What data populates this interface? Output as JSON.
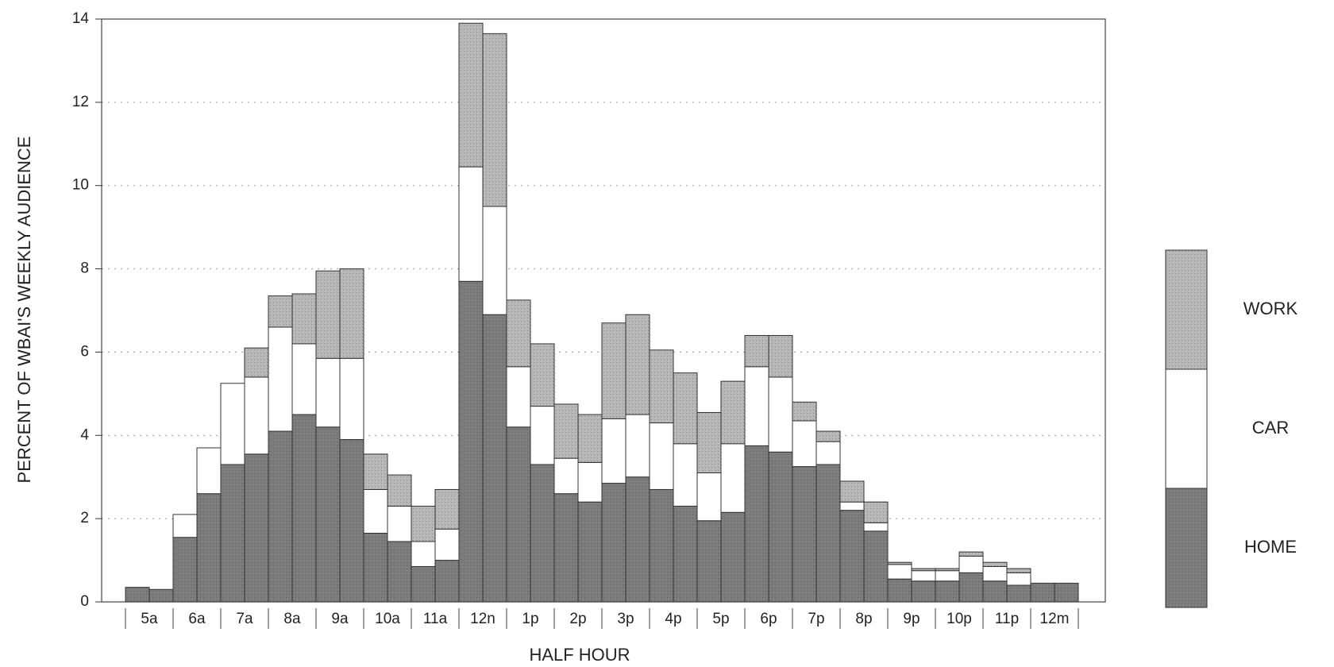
{
  "chart_data": {
    "type": "bar",
    "stacked": true,
    "y_label": "PERCENT OF WBAI'S WEEKLY AUDIENCE",
    "x_label": "HALF HOUR",
    "categories": [
      "5a",
      null,
      "6a",
      null,
      "7a",
      null,
      "8a",
      null,
      "9a",
      null,
      "10a",
      null,
      "11a",
      null,
      "12n",
      null,
      "1p",
      null,
      "2p",
      null,
      "3p",
      null,
      "4p",
      null,
      "5p",
      null,
      "6p",
      null,
      "7p",
      null,
      "8p",
      null,
      "9p",
      null,
      "10p",
      null,
      "11p",
      null,
      "12m",
      null
    ],
    "series": [
      {
        "name": "HOME",
        "color": "#7d7d7d",
        "values": [
          0.35,
          0.3,
          1.55,
          2.6,
          3.3,
          3.55,
          4.1,
          4.5,
          4.2,
          3.9,
          1.65,
          1.45,
          0.85,
          1.0,
          7.7,
          6.9,
          4.2,
          3.3,
          2.6,
          2.4,
          2.85,
          3.0,
          2.7,
          2.3,
          1.95,
          2.15,
          3.75,
          3.6,
          3.25,
          3.3,
          2.2,
          1.7,
          0.55,
          0.5,
          0.5,
          0.7,
          0.5,
          0.4,
          0.45,
          0.45
        ]
      },
      {
        "name": "CAR",
        "color": "#ffffff",
        "values": [
          0,
          0,
          0.55,
          1.1,
          1.95,
          1.85,
          2.5,
          1.7,
          1.65,
          1.95,
          1.05,
          0.85,
          0.6,
          0.75,
          2.75,
          2.6,
          1.45,
          1.4,
          0.85,
          0.95,
          1.55,
          1.5,
          1.6,
          1.5,
          1.15,
          1.65,
          1.9,
          1.8,
          1.1,
          0.55,
          0.2,
          0.2,
          0.35,
          0.25,
          0.25,
          0.4,
          0.35,
          0.3,
          0,
          0
        ]
      },
      {
        "name": "WORK",
        "color": "#b8b8b8",
        "values": [
          0,
          0,
          0,
          0,
          0,
          0.7,
          0.75,
          1.2,
          2.1,
          2.15,
          0.85,
          0.75,
          0.85,
          0.95,
          3.45,
          4.15,
          1.6,
          1.5,
          1.3,
          1.15,
          2.3,
          2.4,
          1.75,
          1.7,
          1.45,
          1.5,
          0.75,
          1.0,
          0.45,
          0.25,
          0.5,
          0.5,
          0.05,
          0.05,
          0.05,
          0.1,
          0.1,
          0.1,
          0,
          0
        ]
      }
    ],
    "ylim": [
      0,
      14
    ],
    "yticks": [
      0,
      2,
      4,
      6,
      8,
      10,
      12,
      14
    ],
    "grid": true,
    "legend": "right"
  }
}
